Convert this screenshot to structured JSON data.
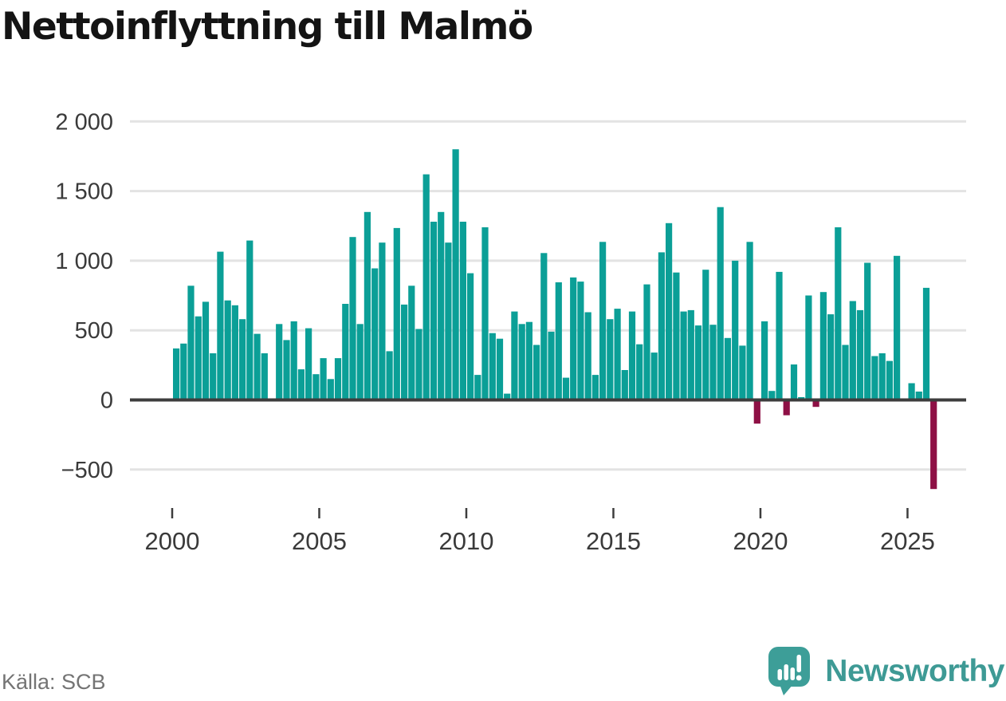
{
  "title": "Nettoinflyttning till Malmö",
  "footer": {
    "source": "Källa: SCB",
    "brand": "Newsworthy"
  },
  "chart_data": {
    "type": "bar",
    "title": "Nettoinflyttning till Malmö",
    "x_start": "2000-Q1",
    "frequency": "quarterly",
    "values": [
      370,
      405,
      820,
      600,
      705,
      335,
      1065,
      715,
      680,
      580,
      1145,
      475,
      335,
      5,
      545,
      430,
      565,
      220,
      515,
      185,
      300,
      150,
      300,
      690,
      1170,
      545,
      1350,
      945,
      1130,
      350,
      1235,
      685,
      820,
      510,
      1620,
      1280,
      1350,
      1130,
      1800,
      1280,
      910,
      180,
      1240,
      480,
      440,
      45,
      635,
      545,
      560,
      395,
      1055,
      490,
      845,
      160,
      880,
      850,
      630,
      180,
      1135,
      580,
      655,
      215,
      635,
      400,
      830,
      340,
      1060,
      1270,
      915,
      635,
      645,
      535,
      935,
      540,
      1385,
      445,
      1000,
      390,
      1135,
      -170,
      565,
      65,
      920,
      -110,
      255,
      20,
      750,
      -50,
      775,
      615,
      1240,
      395,
      710,
      645,
      985,
      315,
      335,
      280,
      1035,
      5,
      120,
      60,
      805,
      -640
    ],
    "xticks": [
      {
        "label": "2000",
        "index": 0
      },
      {
        "label": "2005",
        "index": 20
      },
      {
        "label": "2010",
        "index": 40
      },
      {
        "label": "2015",
        "index": 60
      },
      {
        "label": "2020",
        "index": 80
      },
      {
        "label": "2025",
        "index": 100
      }
    ],
    "yticks": [
      {
        "label": "2 000",
        "value": 2000
      },
      {
        "label": "1 500",
        "value": 1500
      },
      {
        "label": "1 000",
        "value": 1000
      },
      {
        "label": "500",
        "value": 500
      },
      {
        "label": "0",
        "value": 0
      },
      {
        "label": "−500",
        "value": -500
      }
    ],
    "ylim": [
      -700,
      2100
    ],
    "grid": true,
    "legend": false,
    "colors": {
      "positive": "#0b9f97",
      "negative": "#8e1045",
      "axis": "#3d3d3d",
      "grid": "#e3e3e3",
      "tick_label": "#3a3a3a",
      "brand_teal": "#3e9a95"
    }
  }
}
